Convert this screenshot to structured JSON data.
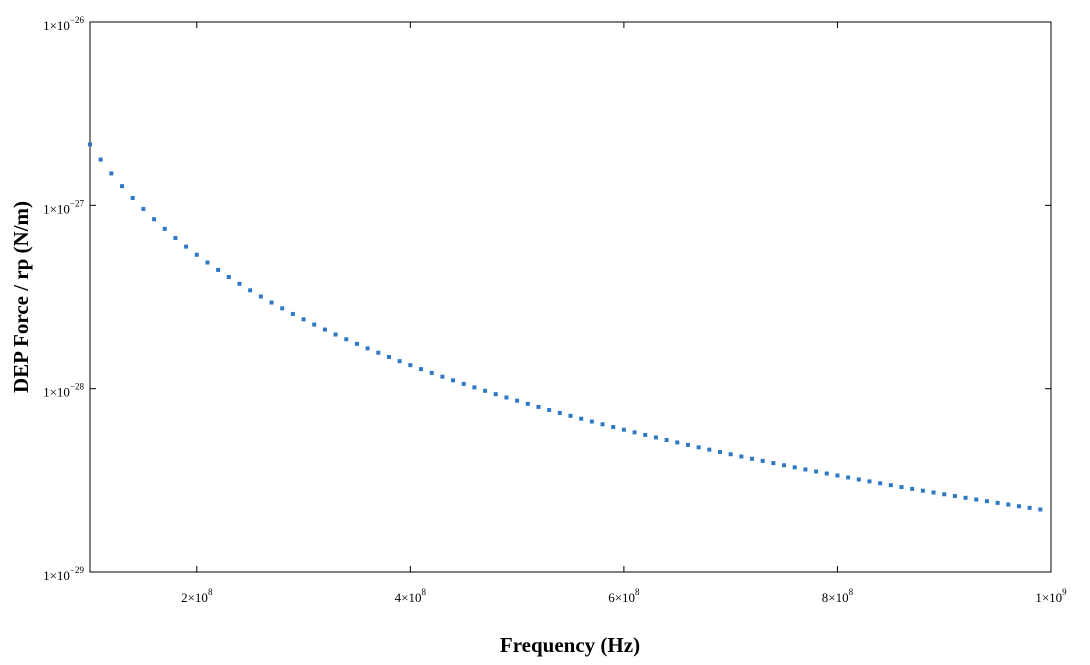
{
  "chart_data": {
    "type": "scatter",
    "title": "",
    "xlabel": "Frequency (Hz)",
    "ylabel": "DEP Force / rp (N/m)",
    "xscale": "linear",
    "yscale": "log",
    "xlim": [
      100000000,
      1000000000
    ],
    "ylim": [
      1e-29,
      1e-26
    ],
    "grid": false,
    "legend": "none",
    "marker_style": "dotted",
    "series_color": "#2f78c4",
    "x_ticks": [
      {
        "value": 200000000,
        "mantissa": "2",
        "base": "×10",
        "exponent": "8"
      },
      {
        "value": 400000000,
        "mantissa": "4",
        "base": "×10",
        "exponent": "8"
      },
      {
        "value": 600000000,
        "mantissa": "6",
        "base": "×10",
        "exponent": "8"
      },
      {
        "value": 800000000,
        "mantissa": "8",
        "base": "×10",
        "exponent": "8"
      },
      {
        "value": 1000000000,
        "mantissa": "1",
        "base": "×10",
        "exponent": "9"
      }
    ],
    "y_ticks": [
      {
        "value": 1e-29,
        "mantissa": "1",
        "base": "×10",
        "exponent": "−29"
      },
      {
        "value": 1e-28,
        "mantissa": "1",
        "base": "×10",
        "exponent": "−28"
      },
      {
        "value": 1e-27,
        "mantissa": "1",
        "base": "×10",
        "exponent": "−27"
      },
      {
        "value": 1e-26,
        "mantissa": "1",
        "base": "×10",
        "exponent": "−26"
      }
    ],
    "series": [
      {
        "model": "y = a * x^-2",
        "a": 2.15e-11,
        "x_start": 100000000,
        "x_end": 990000000,
        "x_step": 10000000
      }
    ]
  }
}
